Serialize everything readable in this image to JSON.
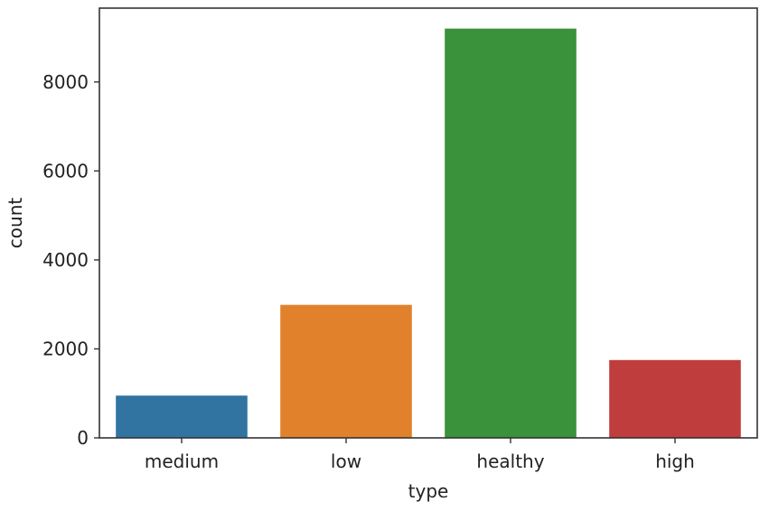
{
  "chart_data": {
    "type": "bar",
    "categories": [
      "medium",
      "low",
      "healthy",
      "high"
    ],
    "values": [
      950,
      2990,
      9200,
      1750
    ],
    "colors": [
      "#3274a1",
      "#e1812c",
      "#3a923a",
      "#c03d3e"
    ],
    "title": "",
    "xlabel": "type",
    "ylabel": "count",
    "ylim": [
      0,
      9660
    ],
    "yticks": [
      0,
      2000,
      4000,
      6000,
      8000
    ],
    "grid": false,
    "legend": "none"
  }
}
